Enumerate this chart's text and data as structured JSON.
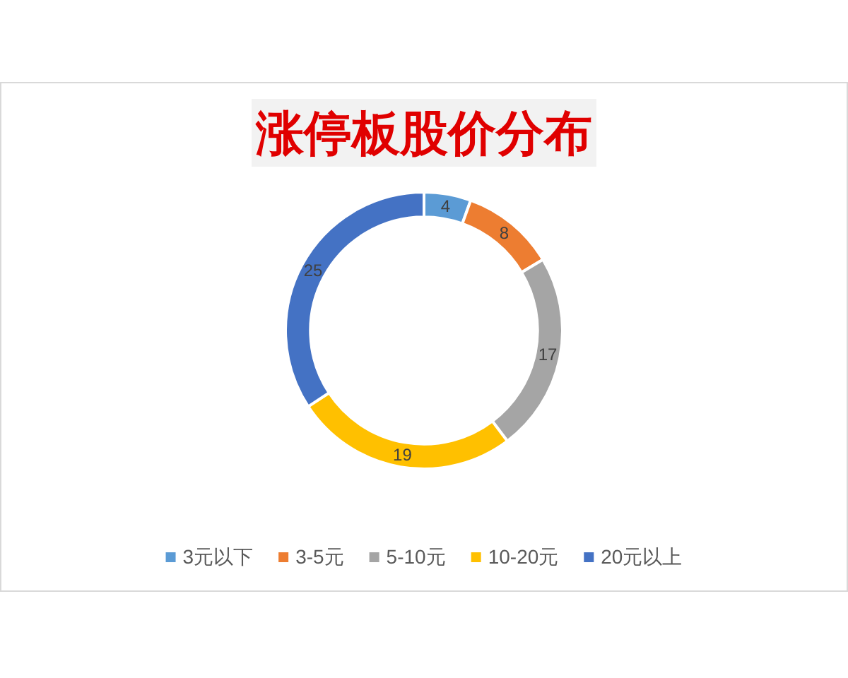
{
  "chart_data": {
    "type": "donut",
    "title": "涨停板股价分布",
    "categories": [
      "3元以下",
      "3-5元",
      "5-10元",
      "10-20元",
      "20元以上"
    ],
    "values": [
      4,
      8,
      17,
      19,
      25
    ],
    "colors": [
      "#5b9bd5",
      "#ed7d31",
      "#a5a5a5",
      "#ffc000",
      "#4472c4"
    ],
    "data_labels": true,
    "legend": "bottom"
  }
}
